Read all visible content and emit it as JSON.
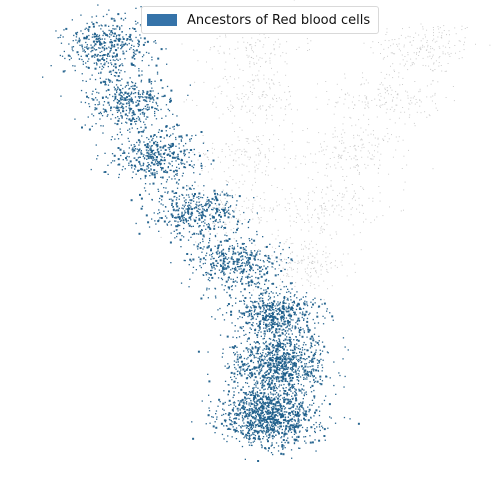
{
  "colors": {
    "ancestor": "#1f5f8b",
    "background_cells": "#b9b9b9",
    "legend_swatch": "#3573a9"
  },
  "legend": {
    "label": "Ancestors of Red blood cells"
  },
  "chart_data": {
    "type": "scatter",
    "title": "",
    "xlabel": "",
    "ylabel": "",
    "axes_visible": false,
    "grid": false,
    "legend_placement": "top-center",
    "series": [
      {
        "name": "Ancestors of Red blood cells",
        "role": "highlighted",
        "clusters": [
          {
            "x": 0.18,
            "y": 0.92,
            "sx": 0.045,
            "sy": 0.035,
            "n": 420
          },
          {
            "x": 0.23,
            "y": 0.8,
            "sx": 0.045,
            "sy": 0.03,
            "n": 420
          },
          {
            "x": 0.29,
            "y": 0.68,
            "sx": 0.045,
            "sy": 0.03,
            "n": 420
          },
          {
            "x": 0.37,
            "y": 0.56,
            "sx": 0.045,
            "sy": 0.028,
            "n": 420
          },
          {
            "x": 0.46,
            "y": 0.45,
            "sx": 0.045,
            "sy": 0.028,
            "n": 430
          },
          {
            "x": 0.54,
            "y": 0.34,
            "sx": 0.045,
            "sy": 0.028,
            "n": 600
          },
          {
            "x": 0.55,
            "y": 0.23,
            "sx": 0.05,
            "sy": 0.032,
            "n": 900
          },
          {
            "x": 0.53,
            "y": 0.12,
            "sx": 0.05,
            "sy": 0.032,
            "n": 1100
          }
        ]
      },
      {
        "name": "",
        "role": "other cells",
        "clusters": [
          {
            "x": 0.86,
            "y": 0.92,
            "sx": 0.06,
            "sy": 0.03,
            "n": 180
          },
          {
            "x": 0.78,
            "y": 0.81,
            "sx": 0.06,
            "sy": 0.03,
            "n": 180
          },
          {
            "x": 0.71,
            "y": 0.69,
            "sx": 0.06,
            "sy": 0.03,
            "n": 180
          },
          {
            "x": 0.65,
            "y": 0.57,
            "sx": 0.055,
            "sy": 0.03,
            "n": 160
          },
          {
            "x": 0.6,
            "y": 0.45,
            "sx": 0.05,
            "sy": 0.03,
            "n": 160
          },
          {
            "x": 0.5,
            "y": 0.92,
            "sx": 0.05,
            "sy": 0.03,
            "n": 120
          },
          {
            "x": 0.5,
            "y": 0.81,
            "sx": 0.055,
            "sy": 0.03,
            "n": 140
          },
          {
            "x": 0.48,
            "y": 0.69,
            "sx": 0.05,
            "sy": 0.03,
            "n": 130
          },
          {
            "x": 0.46,
            "y": 0.57,
            "sx": 0.05,
            "sy": 0.03,
            "n": 110
          }
        ]
      }
    ],
    "xlim": [
      0,
      1
    ],
    "ylim": [
      0,
      1
    ]
  }
}
